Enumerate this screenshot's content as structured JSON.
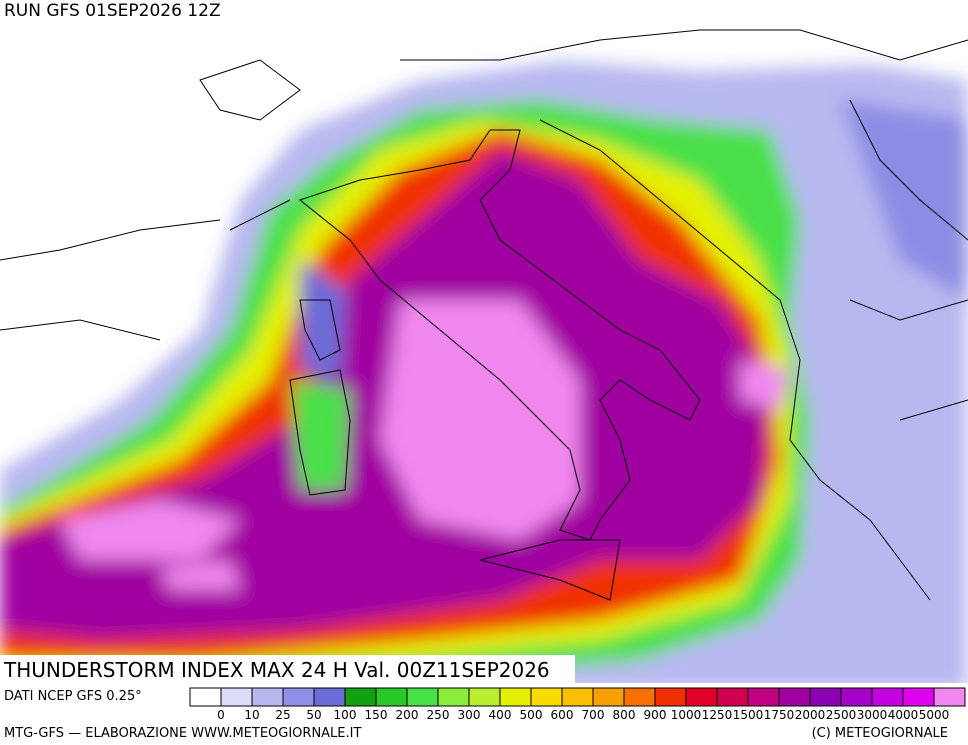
{
  "header": {
    "run": "RUN GFS 01SEP2026 12Z"
  },
  "footer": {
    "title": "THUNDERSTORM INDEX MAX 24 H Val. 00Z11SEP2026",
    "source": "DATI NCEP GFS 0.25°",
    "producer": "MTG-GFS — ELABORAZIONE WWW.METEOGIORNALE.IT",
    "credit": "(C) METEOGIORNALE"
  },
  "legend": {
    "levels": [
      0,
      10,
      25,
      50,
      100,
      150,
      200,
      250,
      300,
      400,
      500,
      600,
      700,
      800,
      900,
      1000,
      1250,
      1500,
      1750,
      2000,
      2500,
      3000,
      4000,
      5000
    ],
    "colors": [
      "#ffffff",
      "#dcdcf8",
      "#b8b8f0",
      "#9090e4",
      "#6c6cd8",
      "#10a010",
      "#28c828",
      "#48e048",
      "#88ec38",
      "#b8f030",
      "#e4f000",
      "#f8dc00",
      "#f8c000",
      "#f8a000",
      "#f87000",
      "#f03000",
      "#e00028",
      "#d00050",
      "#c00080",
      "#a000a0",
      "#8c00b4",
      "#a400c8",
      "#c400e0",
      "#e000f0",
      "#f088f0"
    ]
  }
}
